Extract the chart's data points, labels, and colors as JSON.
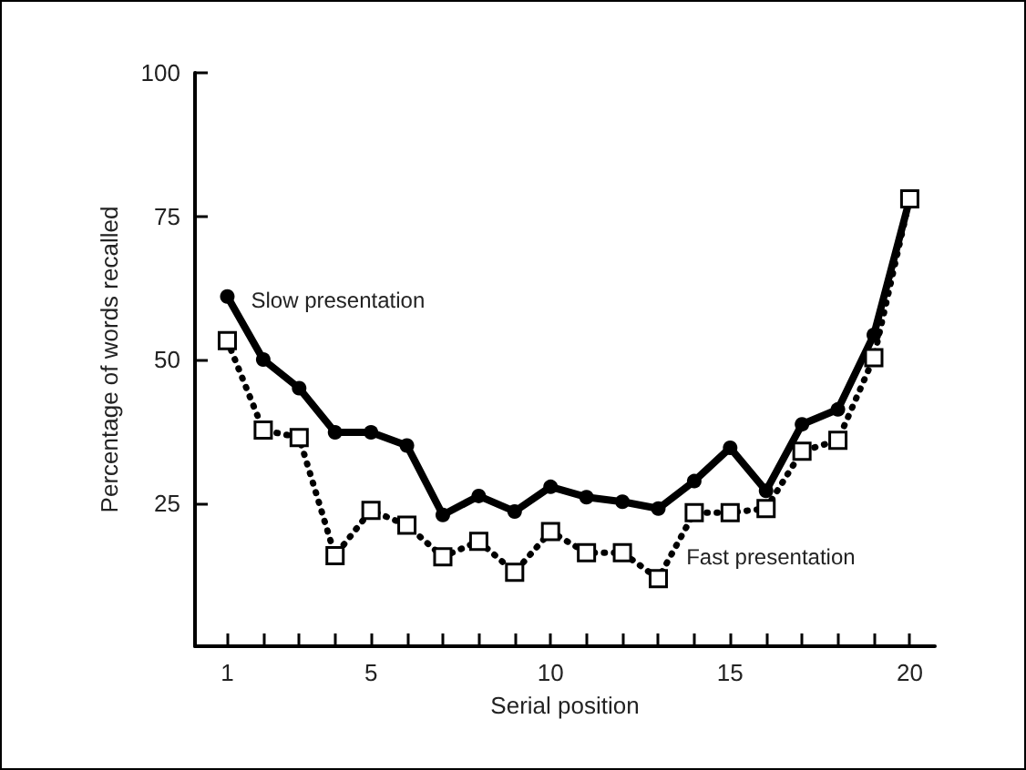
{
  "chart_data": {
    "type": "line",
    "xlabel": "Serial position",
    "ylabel": "Percentage of words recalled",
    "xlim": [
      0.1,
      20.7
    ],
    "xticks": [
      1,
      {
        "value": 2,
        "label": null
      },
      {
        "value": 3,
        "label": null
      },
      {
        "value": 4,
        "label": null
      },
      5,
      {
        "value": 6,
        "label": null
      },
      {
        "value": 7,
        "label": null
      },
      {
        "value": 8,
        "label": null
      },
      {
        "value": 9,
        "label": null
      },
      10,
      {
        "value": 11,
        "label": null
      },
      {
        "value": 12,
        "label": null
      },
      {
        "value": 13,
        "label": null
      },
      {
        "value": 14,
        "label": null
      },
      15,
      {
        "value": 16,
        "label": null
      },
      {
        "value": 17,
        "label": null
      },
      {
        "value": 18,
        "label": null
      },
      {
        "value": 19,
        "label": null
      },
      20
    ],
    "ylim": [
      0,
      100
    ],
    "yticks": [
      25,
      50,
      75,
      100
    ],
    "grid": false,
    "x": [
      1,
      2,
      3,
      4,
      5,
      6,
      7,
      8,
      9,
      10,
      11,
      12,
      13,
      14,
      15,
      16,
      17,
      18,
      19,
      20
    ],
    "series": [
      {
        "name": "Slow presentation",
        "color": "#000000",
        "marker": "circle",
        "line_style": "solid",
        "values": [
          61,
          50,
          45,
          37.3,
          37.3,
          35,
          22.9,
          26.2,
          23.5,
          27.8,
          26,
          25.2,
          24,
          28.8,
          34.6,
          27.1,
          38.7,
          41.3,
          54.3,
          78
        ]
      },
      {
        "name": "Fast presentation",
        "color": "#000000",
        "marker": "square",
        "line_style": "dotted",
        "values": [
          53.3,
          37.7,
          36.4,
          15.8,
          23.7,
          21.1,
          15.6,
          18.3,
          12.9,
          20,
          16.3,
          16.3,
          11.8,
          23.3,
          23.3,
          24,
          34,
          35.9,
          50.3,
          78
        ]
      }
    ]
  }
}
